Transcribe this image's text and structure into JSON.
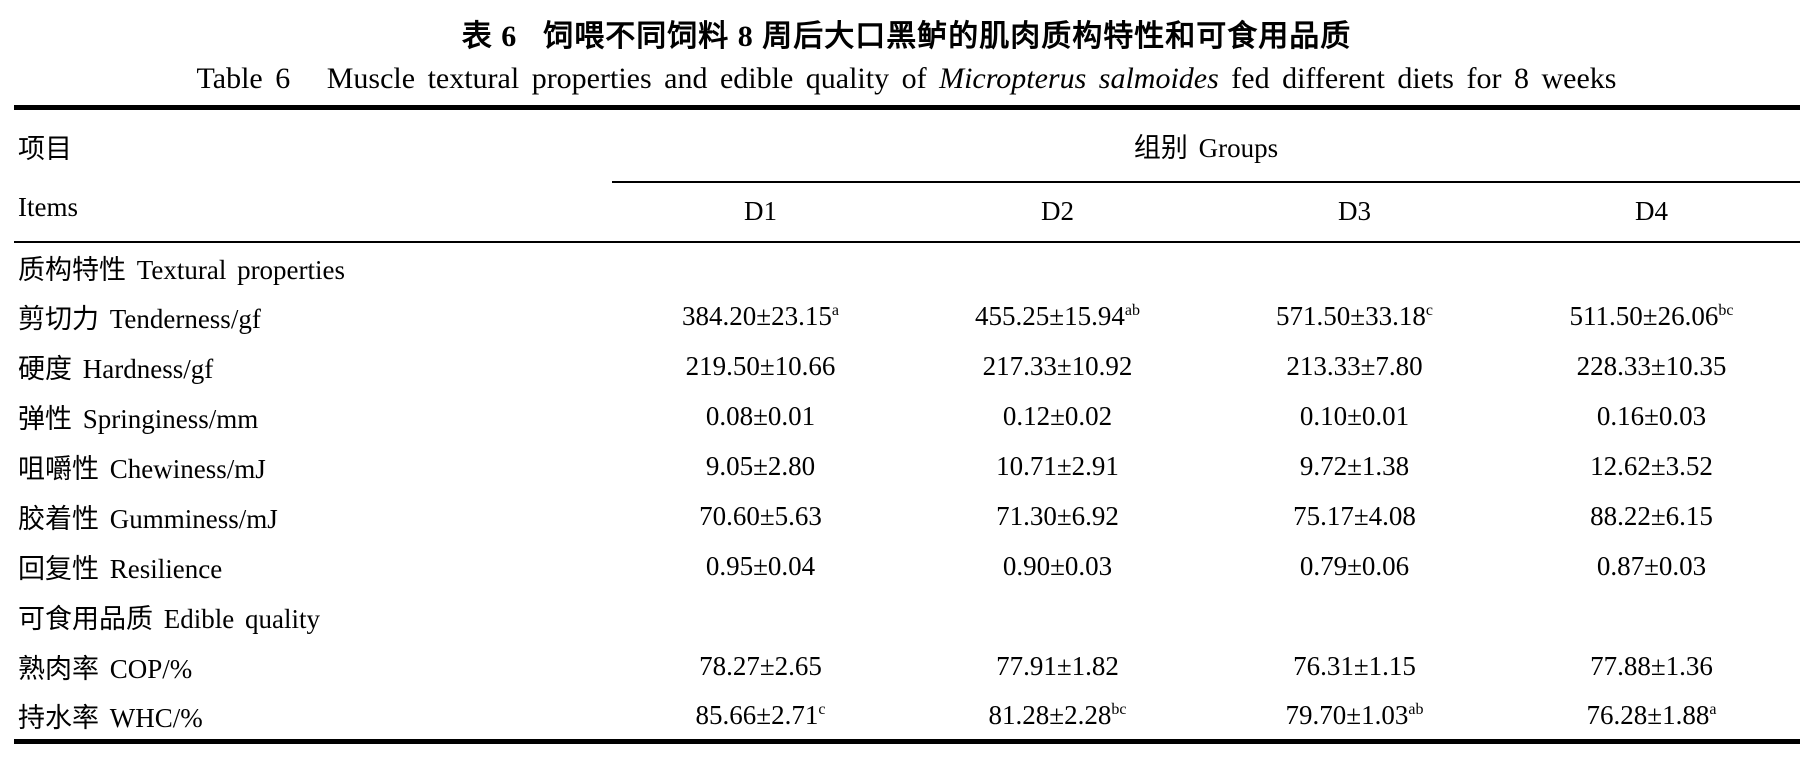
{
  "titles": {
    "cn_prefix": "表 6",
    "cn_main": "饲喂不同饲料 8 周后大口黑鲈的肌肉质构特性和可食用品质",
    "en_prefix": "Table 6",
    "en_main": "Muscle textural properties and edible quality of",
    "en_species": "Micropterus salmoides",
    "en_suffix": "fed different diets for 8 weeks"
  },
  "header": {
    "items_cn": "项目",
    "items_en": "Items",
    "groups": "组别 Groups",
    "columns": [
      "D1",
      "D2",
      "D3",
      "D4"
    ]
  },
  "rows": [
    {
      "type": "section",
      "label": "质构特性 Textural properties"
    },
    {
      "type": "data",
      "label": "剪切力 Tenderness/gf",
      "values": [
        {
          "text": "384.20±23.15",
          "sup": "a"
        },
        {
          "text": "455.25±15.94",
          "sup": "ab"
        },
        {
          "text": "571.50±33.18",
          "sup": "c"
        },
        {
          "text": "511.50±26.06",
          "sup": "bc"
        }
      ]
    },
    {
      "type": "data",
      "label": "硬度 Hardness/gf",
      "values": [
        {
          "text": "219.50±10.66",
          "sup": ""
        },
        {
          "text": "217.33±10.92",
          "sup": ""
        },
        {
          "text": "213.33±7.80",
          "sup": ""
        },
        {
          "text": "228.33±10.35",
          "sup": ""
        }
      ]
    },
    {
      "type": "data",
      "label": "弹性 Springiness/mm",
      "values": [
        {
          "text": "0.08±0.01",
          "sup": ""
        },
        {
          "text": "0.12±0.02",
          "sup": ""
        },
        {
          "text": "0.10±0.01",
          "sup": ""
        },
        {
          "text": "0.16±0.03",
          "sup": ""
        }
      ]
    },
    {
      "type": "data",
      "label": "咀嚼性 Chewiness/mJ",
      "values": [
        {
          "text": "9.05±2.80",
          "sup": ""
        },
        {
          "text": "10.71±2.91",
          "sup": ""
        },
        {
          "text": "9.72±1.38",
          "sup": ""
        },
        {
          "text": "12.62±3.52",
          "sup": ""
        }
      ]
    },
    {
      "type": "data",
      "label": "胶着性 Gumminess/mJ",
      "values": [
        {
          "text": "70.60±5.63",
          "sup": ""
        },
        {
          "text": "71.30±6.92",
          "sup": ""
        },
        {
          "text": "75.17±4.08",
          "sup": ""
        },
        {
          "text": "88.22±6.15",
          "sup": ""
        }
      ]
    },
    {
      "type": "data",
      "label": "回复性 Resilience",
      "values": [
        {
          "text": "0.95±0.04",
          "sup": ""
        },
        {
          "text": "0.90±0.03",
          "sup": ""
        },
        {
          "text": "0.79±0.06",
          "sup": ""
        },
        {
          "text": "0.87±0.03",
          "sup": ""
        }
      ]
    },
    {
      "type": "section",
      "label": "可食用品质 Edible quality"
    },
    {
      "type": "data",
      "label": "熟肉率 COP/%",
      "values": [
        {
          "text": "78.27±2.65",
          "sup": ""
        },
        {
          "text": "77.91±1.82",
          "sup": ""
        },
        {
          "text": "76.31±1.15",
          "sup": ""
        },
        {
          "text": "77.88±1.36",
          "sup": ""
        }
      ]
    },
    {
      "type": "data",
      "label": "持水率 WHC/%",
      "values": [
        {
          "text": "85.66±2.71",
          "sup": "c"
        },
        {
          "text": "81.28±2.28",
          "sup": "bc"
        },
        {
          "text": "79.70±1.03",
          "sup": "ab"
        },
        {
          "text": "76.28±1.88",
          "sup": "a"
        }
      ]
    }
  ]
}
